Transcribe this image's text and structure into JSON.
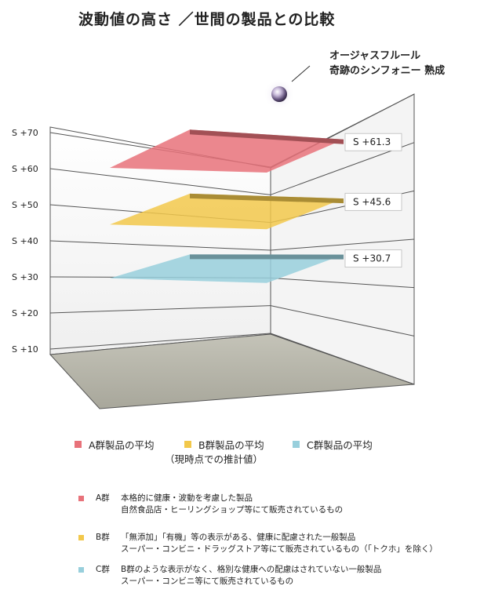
{
  "title": "波動値の高さ ／世間の製品との比較",
  "annotation": {
    "line1": "オージャスフルール",
    "line2": "奇跡のシンフォニー  熟成"
  },
  "chart_data": {
    "type": "bar",
    "ylim": [
      10,
      70
    ],
    "yticks": [
      "S +70",
      "S +60",
      "S +50",
      "S +40",
      "S +30",
      "S +20",
      "S +10"
    ],
    "series": [
      {
        "name": "A群製品の平均",
        "value": 61.3,
        "label": "S  +61.3",
        "color": "#e8727a"
      },
      {
        "name": "B群製品の平均",
        "value": 45.6,
        "label": "S  +45.6",
        "color": "#f2c84b"
      },
      {
        "name": "C群製品の平均",
        "value": 30.7,
        "label": "S  +30.7",
        "color": "#98cfdc"
      }
    ],
    "legend_note": "（現時点での推計値）"
  },
  "descriptions": [
    {
      "name": "A群",
      "color": "#e8727a",
      "lines": [
        "本格的に健康・波動を考慮した製品",
        "自然食品店・ヒーリングショップ等にて販売されているもの"
      ]
    },
    {
      "name": "B群",
      "color": "#f2c84b",
      "lines": [
        "「無添加」「有機」等の表示がある、健康に配慮された一般製品",
        "スーパー・コンビニ・ドラッグストア等にて販売されているもの（「トクホ」を除く）"
      ]
    },
    {
      "name": "C群",
      "color": "#98cfdc",
      "lines": [
        "B群のような表示がなく、格別な健康への配慮はされていない一般製品",
        "スーパー・コンビニ等にて販売されているもの"
      ]
    }
  ]
}
